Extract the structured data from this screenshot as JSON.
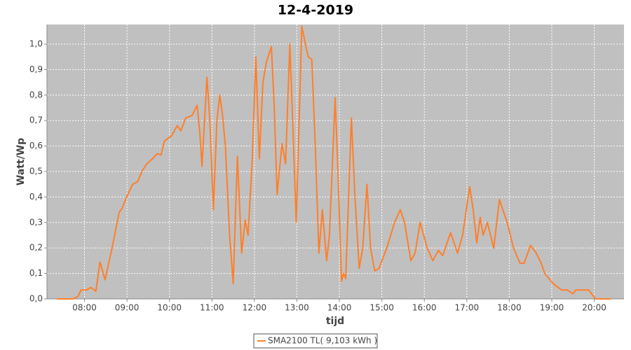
{
  "chart_data": {
    "type": "line",
    "title": "12-4-2019",
    "x_label": "tijd",
    "y_label": "Watt/Wp",
    "x": [
      "07:21",
      "07:44",
      "07:51",
      "07:55",
      "08:03",
      "08:09",
      "08:16",
      "08:22",
      "08:29",
      "08:39",
      "08:49",
      "08:53",
      "08:58",
      "09:03",
      "09:08",
      "09:15",
      "09:21",
      "09:28",
      "09:36",
      "09:43",
      "09:48",
      "09:53",
      "10:03",
      "10:11",
      "10:16",
      "10:23",
      "10:32",
      "10:39",
      "10:43",
      "10:46",
      "10:53",
      "10:57",
      "11:02",
      "11:07",
      "11:11",
      "11:15",
      "11:19",
      "11:25",
      "11:30",
      "11:36",
      "11:42",
      "11:47",
      "11:51",
      "11:57",
      "12:02",
      "12:07",
      "12:12",
      "12:17",
      "12:24",
      "12:28",
      "12:32",
      "12:39",
      "12:44",
      "12:50",
      "12:54",
      "12:59",
      "13:07",
      "13:12",
      "13:16",
      "13:21",
      "13:26",
      "13:31",
      "13:36",
      "13:42",
      "13:46",
      "13:54",
      "13:58",
      "14:03",
      "14:06",
      "14:09",
      "14:17",
      "14:22",
      "14:28",
      "14:33",
      "14:39",
      "14:44",
      "14:50",
      "14:56",
      "15:07",
      "15:18",
      "15:26",
      "15:32",
      "15:41",
      "15:47",
      "15:54",
      "16:04",
      "16:12",
      "16:20",
      "16:26",
      "16:37",
      "16:47",
      "16:54",
      "17:04",
      "17:09",
      "17:14",
      "17:19",
      "17:23",
      "17:29",
      "17:38",
      "17:46",
      "17:57",
      "18:06",
      "18:15",
      "18:21",
      "18:30",
      "18:38",
      "18:45",
      "18:50",
      "19:02",
      "19:14",
      "19:22",
      "19:30",
      "19:34",
      "19:52",
      "20:02",
      "20:24"
    ],
    "series": [
      {
        "name": "SMA2100 TL( 9,103 kWh )",
        "color": "#ff7f2a",
        "values": [
          0,
          0,
          0.01,
          0.035,
          0.035,
          0.045,
          0.03,
          0.145,
          0.075,
          0.2,
          0.34,
          0.355,
          0.39,
          0.42,
          0.45,
          0.46,
          0.5,
          0.53,
          0.55,
          0.57,
          0.565,
          0.62,
          0.64,
          0.68,
          0.66,
          0.71,
          0.72,
          0.76,
          0.65,
          0.52,
          0.87,
          0.7,
          0.35,
          0.7,
          0.8,
          0.72,
          0.6,
          0.25,
          0.06,
          0.56,
          0.18,
          0.31,
          0.25,
          0.55,
          0.95,
          0.55,
          0.85,
          0.93,
          0.99,
          0.75,
          0.41,
          0.61,
          0.53,
          1.0,
          0.7,
          0.3,
          1.07,
          1.0,
          0.95,
          0.94,
          0.6,
          0.18,
          0.35,
          0.15,
          0.25,
          0.79,
          0.5,
          0.07,
          0.1,
          0.08,
          0.71,
          0.4,
          0.12,
          0.2,
          0.45,
          0.2,
          0.11,
          0.12,
          0.2,
          0.3,
          0.35,
          0.3,
          0.15,
          0.18,
          0.3,
          0.2,
          0.15,
          0.19,
          0.17,
          0.26,
          0.18,
          0.25,
          0.44,
          0.35,
          0.22,
          0.32,
          0.25,
          0.3,
          0.2,
          0.39,
          0.3,
          0.2,
          0.14,
          0.14,
          0.21,
          0.18,
          0.14,
          0.1,
          0.06,
          0.035,
          0.035,
          0.02,
          0.035,
          0.035,
          0,
          0
        ]
      }
    ],
    "xlim": [
      "07:07",
      "20:42"
    ],
    "xticks": [
      "08:00",
      "09:00",
      "10:00",
      "11:00",
      "12:00",
      "13:00",
      "14:00",
      "15:00",
      "16:00",
      "17:00",
      "18:00",
      "19:00",
      "20:00"
    ],
    "ylim": [
      0,
      1.077
    ],
    "yticks": [
      {
        "value": 0,
        "label": "0,0"
      },
      {
        "value": 0.1,
        "label": "0,1"
      },
      {
        "value": 0.2,
        "label": "0,2"
      },
      {
        "value": 0.3,
        "label": "0,3"
      },
      {
        "value": 0.4,
        "label": "0,4"
      },
      {
        "value": 0.5,
        "label": "0,5"
      },
      {
        "value": 0.6,
        "label": "0,6"
      },
      {
        "value": 0.7,
        "label": "0,7"
      },
      {
        "value": 0.8,
        "label": "0,8"
      },
      {
        "value": 0.9,
        "label": "0,9"
      },
      {
        "value": 1.0,
        "label": "1,0"
      }
    ],
    "grid": true,
    "legend": "bottom"
  }
}
